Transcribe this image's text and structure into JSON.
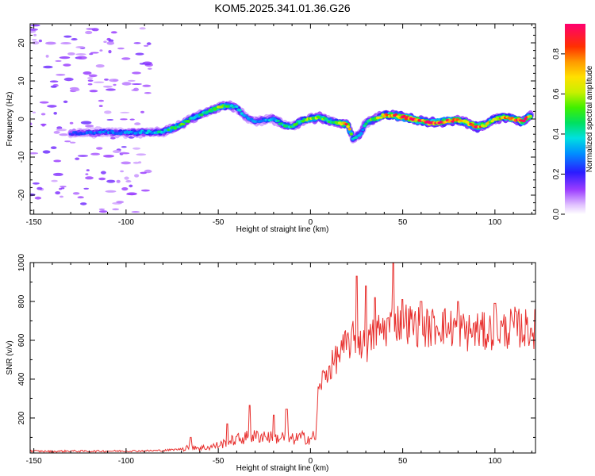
{
  "title": "KOM5.2025.341.01.36.G26",
  "chart_data": [
    {
      "type": "heatmap",
      "name": "spectrogram",
      "xlabel": "Height of straight line (km)",
      "ylabel": "Frequency (Hz)",
      "xlim": [
        -152,
        122
      ],
      "ylim": [
        -25,
        25
      ],
      "x_ticks": [
        -150,
        -100,
        -50,
        0,
        50,
        100
      ],
      "y_ticks": [
        -20,
        -10,
        0,
        10,
        20
      ],
      "colorbar": {
        "label": "Normalized spectral amplitude",
        "range": [
          0,
          0.95
        ],
        "ticks": [
          "0.0",
          "0.2",
          "0.4",
          "0.6",
          "0.8"
        ],
        "tick_values": [
          0,
          0.2,
          0.4,
          0.6,
          0.8
        ]
      },
      "ridge_x": [
        -130,
        -120,
        -110,
        -100,
        -90,
        -80,
        -75,
        -70,
        -65,
        -60,
        -55,
        -50,
        -45,
        -40,
        -35,
        -30,
        -25,
        -20,
        -15,
        -10,
        -5,
        0,
        5,
        10,
        15,
        20,
        23,
        27,
        30,
        35,
        40,
        45,
        50,
        55,
        60,
        65,
        70,
        75,
        80,
        85,
        90,
        95,
        100,
        105,
        110,
        115,
        120
      ],
      "ridge_freq": [
        -3.8,
        -3.6,
        -3.5,
        -3.6,
        -3.5,
        -3.4,
        -2.5,
        -1.5,
        0,
        1,
        2,
        3,
        3.5,
        3,
        0.5,
        -0.5,
        -0.2,
        0,
        -1.5,
        -2,
        -0.5,
        0,
        0.5,
        -0.5,
        -1,
        -1.5,
        -5,
        -4,
        -1,
        0,
        1,
        1,
        0.5,
        0,
        -0.5,
        -1,
        -0.8,
        -0.5,
        -0.3,
        -1,
        -2,
        -1.5,
        0,
        0.5,
        0,
        -0.5,
        1
      ],
      "ridge_amp": [
        0.22,
        0.25,
        0.28,
        0.3,
        0.32,
        0.38,
        0.45,
        0.5,
        0.42,
        0.4,
        0.45,
        0.55,
        0.5,
        0.35,
        0.3,
        0.28,
        0.3,
        0.35,
        0.4,
        0.45,
        0.5,
        0.6,
        0.55,
        0.45,
        0.6,
        0.8,
        0.4,
        0.35,
        0.4,
        0.55,
        0.7,
        0.75,
        0.85,
        0.9,
        0.8,
        0.92,
        0.88,
        0.85,
        0.7,
        0.75,
        0.9,
        0.6,
        0.65,
        0.7,
        0.75,
        0.95,
        0.6
      ]
    },
    {
      "type": "line",
      "name": "snr",
      "xlabel": "Height of straight line (km)",
      "ylabel": "SNR (v/v)",
      "xlim": [
        -152,
        122
      ],
      "ylim": [
        20,
        1000
      ],
      "x_ticks": [
        -150,
        -100,
        -50,
        0,
        50,
        100
      ],
      "y_ticks": [
        200,
        400,
        600,
        800,
        1000
      ],
      "color": "#e8312f",
      "x": [
        -152,
        -140,
        -130,
        -120,
        -110,
        -100,
        -90,
        -80,
        -70,
        -65,
        -60,
        -55,
        -50,
        -45,
        -40,
        -35,
        -30,
        -25,
        -20,
        -15,
        -10,
        -5,
        0,
        3,
        4,
        6,
        10,
        15,
        20,
        25,
        30,
        35,
        40,
        45,
        50,
        55,
        60,
        65,
        70,
        75,
        80,
        85,
        90,
        95,
        100,
        105,
        110,
        115,
        120
      ],
      "y": [
        30,
        28,
        30,
        29,
        30,
        30,
        31,
        33,
        40,
        60,
        45,
        50,
        60,
        75,
        90,
        100,
        105,
        110,
        95,
        100,
        90,
        100,
        95,
        110,
        320,
        390,
        450,
        520,
        580,
        620,
        560,
        640,
        660,
        690,
        700,
        680,
        670,
        660,
        690,
        660,
        670,
        640,
        650,
        640,
        660,
        650,
        670,
        660,
        660
      ],
      "spikes": [
        [
          -65,
          100
        ],
        [
          -45,
          170
        ],
        [
          -33,
          265
        ],
        [
          -20,
          215
        ],
        [
          -13,
          245
        ],
        [
          25,
          930
        ],
        [
          30,
          880
        ],
        [
          35,
          820
        ],
        [
          45,
          1000
        ],
        [
          50,
          810
        ],
        [
          60,
          800
        ],
        [
          80,
          800
        ],
        [
          100,
          790
        ]
      ]
    }
  ]
}
